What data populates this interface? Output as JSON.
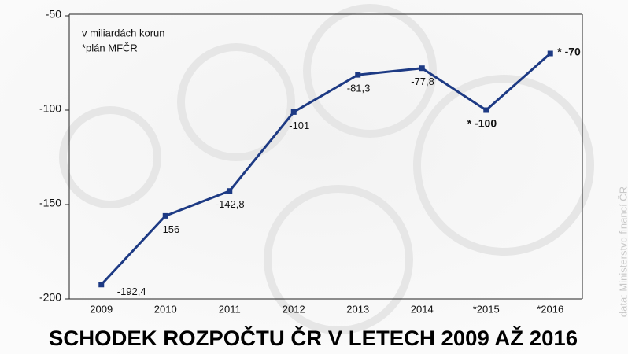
{
  "chart_data": {
    "type": "line",
    "title": "SCHODEK ROZPOČTU ČR V LETECH 2009 AŽ 2016",
    "annotations": [
      "v miliardách korun",
      "*plán MFČR"
    ],
    "source": "data: Ministerstvo financí ČR",
    "categories": [
      "2009",
      "2010",
      "2011",
      "2012",
      "2013",
      "2014",
      "*2015",
      "*2016"
    ],
    "series": [
      {
        "name": "Schodek",
        "color": "#1d3a84",
        "values": [
          -192.4,
          -156,
          -142.8,
          -101,
          -81.3,
          -77.8,
          -100,
          -70
        ],
        "value_labels": [
          "-192,4",
          "-156",
          "-142,8",
          "-101",
          "-81,3",
          "-77,8",
          "* -100",
          "* -70"
        ]
      }
    ],
    "ylim": [
      -200,
      -50
    ],
    "yticks": [
      -200,
      -150,
      -100,
      -50
    ]
  }
}
